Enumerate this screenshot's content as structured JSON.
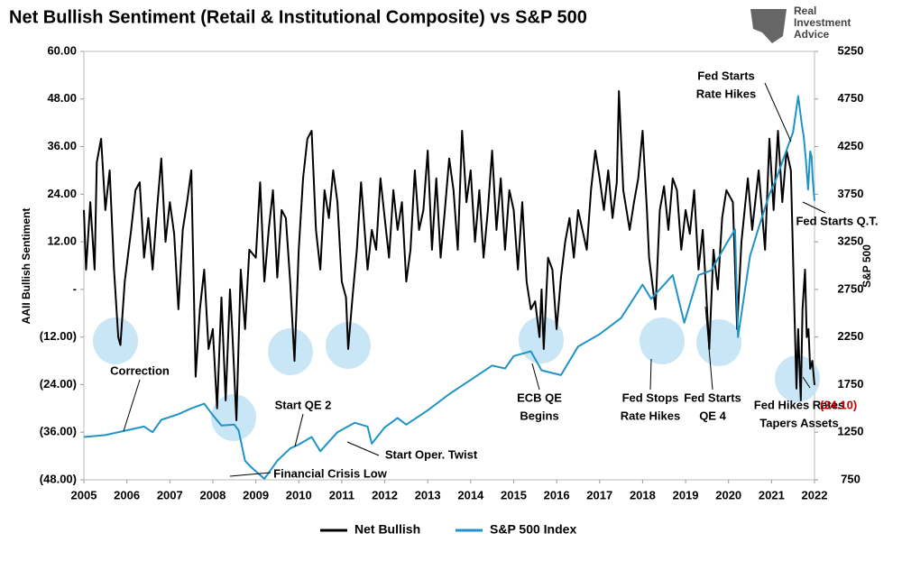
{
  "chart_data": {
    "type": "line",
    "title": "Net Bullish Sentiment (Retail & Institutional Composite) vs S&P 500",
    "logo": [
      "Real",
      "Investment",
      "Advice"
    ],
    "y_label": "AAII Bullish Sentiment",
    "y2_label": "S&P 500",
    "xlim": [
      2005,
      2022
    ],
    "xticks": [
      2005,
      2006,
      2007,
      2008,
      2009,
      2010,
      2011,
      2012,
      2013,
      2014,
      2015,
      2016,
      2017,
      2018,
      2019,
      2020,
      2021,
      2022
    ],
    "ylim": [
      -48,
      60
    ],
    "yticks": [
      {
        "value": 60,
        "label": "60.00"
      },
      {
        "value": 48,
        "label": "48.00"
      },
      {
        "value": 36,
        "label": "36.00"
      },
      {
        "value": 24,
        "label": "24.00"
      },
      {
        "value": 12,
        "label": "12.00"
      },
      {
        "value": 0,
        "label": "-"
      },
      {
        "value": -12,
        "label": "(12.00)"
      },
      {
        "value": -24,
        "label": "(24.00)"
      },
      {
        "value": -36,
        "label": "(36.00)"
      },
      {
        "value": -48,
        "label": "(48.00)"
      }
    ],
    "y2lim": [
      750,
      5250
    ],
    "y2ticks": [
      750,
      1250,
      1750,
      2250,
      2750,
      3250,
      3750,
      4250,
      4750,
      5250
    ],
    "legend": "bottom",
    "series": [
      {
        "name": "Net Bullish",
        "color": "#000000",
        "x": [
          2005.0,
          2005.05,
          2005.15,
          2005.25,
          2005.3,
          2005.4,
          2005.5,
          2005.6,
          2005.7,
          2005.8,
          2005.85,
          2005.95,
          2006.1,
          2006.2,
          2006.3,
          2006.4,
          2006.5,
          2006.6,
          2006.7,
          2006.8,
          2006.9,
          2007.0,
          2007.1,
          2007.2,
          2007.3,
          2007.4,
          2007.5,
          2007.6,
          2007.7,
          2007.8,
          2007.9,
          2008.0,
          2008.1,
          2008.2,
          2008.3,
          2008.4,
          2008.45,
          2008.55,
          2008.65,
          2008.75,
          2008.85,
          2009.0,
          2009.1,
          2009.2,
          2009.3,
          2009.4,
          2009.5,
          2009.6,
          2009.7,
          2009.8,
          2009.9,
          2010.0,
          2010.1,
          2010.2,
          2010.3,
          2010.4,
          2010.5,
          2010.6,
          2010.7,
          2010.8,
          2010.9,
          2011.0,
          2011.1,
          2011.15,
          2011.25,
          2011.35,
          2011.45,
          2011.6,
          2011.7,
          2011.8,
          2011.9,
          2012.0,
          2012.1,
          2012.2,
          2012.3,
          2012.4,
          2012.5,
          2012.6,
          2012.7,
          2012.8,
          2012.9,
          2013.0,
          2013.1,
          2013.2,
          2013.3,
          2013.4,
          2013.5,
          2013.6,
          2013.7,
          2013.8,
          2013.9,
          2014.0,
          2014.1,
          2014.2,
          2014.3,
          2014.4,
          2014.5,
          2014.6,
          2014.7,
          2014.8,
          2014.9,
          2015.0,
          2015.1,
          2015.2,
          2015.3,
          2015.4,
          2015.5,
          2015.6,
          2015.65,
          2015.7,
          2015.8,
          2015.9,
          2016.0,
          2016.1,
          2016.2,
          2016.3,
          2016.4,
          2016.5,
          2016.6,
          2016.7,
          2016.8,
          2016.9,
          2017.0,
          2017.1,
          2017.2,
          2017.3,
          2017.4,
          2017.45,
          2017.55,
          2017.7,
          2017.8,
          2017.9,
          2018.0,
          2018.1,
          2018.15,
          2018.3,
          2018.4,
          2018.5,
          2018.6,
          2018.7,
          2018.8,
          2018.9,
          2019.0,
          2019.1,
          2019.2,
          2019.3,
          2019.4,
          2019.5,
          2019.55,
          2019.65,
          2019.75,
          2019.85,
          2019.95,
          2020.1,
          2020.2,
          2020.3,
          2020.45,
          2020.55,
          2020.7,
          2020.85,
          2020.95,
          2021.05,
          2021.15,
          2021.25,
          2021.35,
          2021.45,
          2021.52,
          2021.58,
          2021.62,
          2021.68,
          2021.72,
          2021.78,
          2021.82,
          2021.86,
          2021.9,
          2021.95,
          2022.0
        ],
        "values": [
          20,
          5,
          22,
          5,
          32,
          38,
          20,
          30,
          5,
          -12,
          -14,
          2,
          15,
          25,
          27,
          8,
          18,
          5,
          20,
          33,
          12,
          22,
          14,
          -5,
          15,
          22,
          30,
          -22,
          -5,
          5,
          -15,
          -10,
          -30,
          -2,
          -28,
          0,
          -10,
          -33,
          5,
          -10,
          10,
          8,
          27,
          2,
          15,
          25,
          3,
          20,
          18,
          2,
          -18,
          10,
          28,
          38,
          40,
          15,
          5,
          25,
          18,
          30,
          22,
          2,
          -2,
          -15,
          -2,
          10,
          27,
          5,
          15,
          10,
          28,
          18,
          8,
          25,
          15,
          22,
          2,
          10,
          30,
          15,
          20,
          35,
          10,
          28,
          8,
          20,
          33,
          25,
          10,
          40,
          22,
          30,
          12,
          25,
          8,
          20,
          35,
          15,
          28,
          10,
          25,
          20,
          5,
          22,
          2,
          -5,
          -3,
          -12,
          0,
          -15,
          8,
          5,
          -10,
          3,
          12,
          18,
          8,
          20,
          15,
          10,
          25,
          35,
          28,
          20,
          30,
          18,
          27,
          50,
          25,
          15,
          22,
          28,
          40,
          20,
          8,
          -5,
          20,
          26,
          15,
          28,
          25,
          10,
          20,
          14,
          25,
          5,
          15,
          -5,
          -15,
          10,
          0,
          18,
          25,
          22,
          -10,
          12,
          28,
          15,
          30,
          10,
          38,
          20,
          40,
          22,
          35,
          30,
          0,
          -25,
          -10,
          -28,
          -5,
          5,
          -12,
          -10,
          -20,
          -18,
          -24.1
        ]
      },
      {
        "name": "S&P 500 Index",
        "color": "#1f93c7",
        "axis": "y2",
        "x": [
          2005.0,
          2005.5,
          2006.0,
          2006.4,
          2006.6,
          2006.8,
          2007.2,
          2007.5,
          2007.8,
          2008.0,
          2008.2,
          2008.5,
          2008.6,
          2008.75,
          2008.9,
          2009.2,
          2009.5,
          2009.8,
          2010.0,
          2010.3,
          2010.5,
          2010.9,
          2011.3,
          2011.6,
          2011.7,
          2012.0,
          2012.3,
          2012.5,
          2013.0,
          2013.5,
          2014.0,
          2014.5,
          2014.8,
          2015.0,
          2015.4,
          2015.65,
          2016.1,
          2016.5,
          2017.0,
          2017.5,
          2018.0,
          2018.2,
          2018.7,
          2018.97,
          2019.3,
          2019.6,
          2019.95,
          2020.15,
          2020.22,
          2020.5,
          2020.7,
          2020.95,
          2021.1,
          2021.3,
          2021.5,
          2021.62,
          2021.7,
          2021.75,
          2021.8,
          2021.85,
          2021.9,
          2021.93,
          2021.96,
          2022.0
        ],
        "values": [
          1200,
          1220,
          1270,
          1310,
          1250,
          1380,
          1440,
          1500,
          1550,
          1430,
          1320,
          1330,
          1270,
          950,
          880,
          760,
          950,
          1080,
          1120,
          1200,
          1050,
          1250,
          1350,
          1310,
          1130,
          1300,
          1400,
          1330,
          1480,
          1650,
          1800,
          1950,
          1920,
          2050,
          2100,
          1900,
          1850,
          2150,
          2280,
          2450,
          2800,
          2650,
          2900,
          2400,
          2900,
          2950,
          3230,
          3380,
          2250,
          3100,
          3400,
          3750,
          3900,
          4150,
          4400,
          4780,
          4500,
          4350,
          4100,
          3800,
          4200,
          4150,
          3900,
          3680
        ]
      }
    ],
    "end_label": {
      "value": -24.1,
      "label": "(24.10)",
      "color": "#c00000"
    },
    "annotations": [
      [
        "Correction"
      ],
      [
        "Start QE 2"
      ],
      [
        "Financial Crisis Low"
      ],
      [
        "Start Oper. Twist"
      ],
      [
        "ECB QE",
        "Begins"
      ],
      [
        "Fed Stops",
        "Rate Hikes"
      ],
      [
        "Fed Starts",
        "QE 4"
      ],
      [
        "Fed Starts",
        "Rate Hikes"
      ],
      [
        "Fed Starts Q.T."
      ],
      [
        "Fed Hikes Rates",
        "Tapers Assets"
      ]
    ]
  }
}
